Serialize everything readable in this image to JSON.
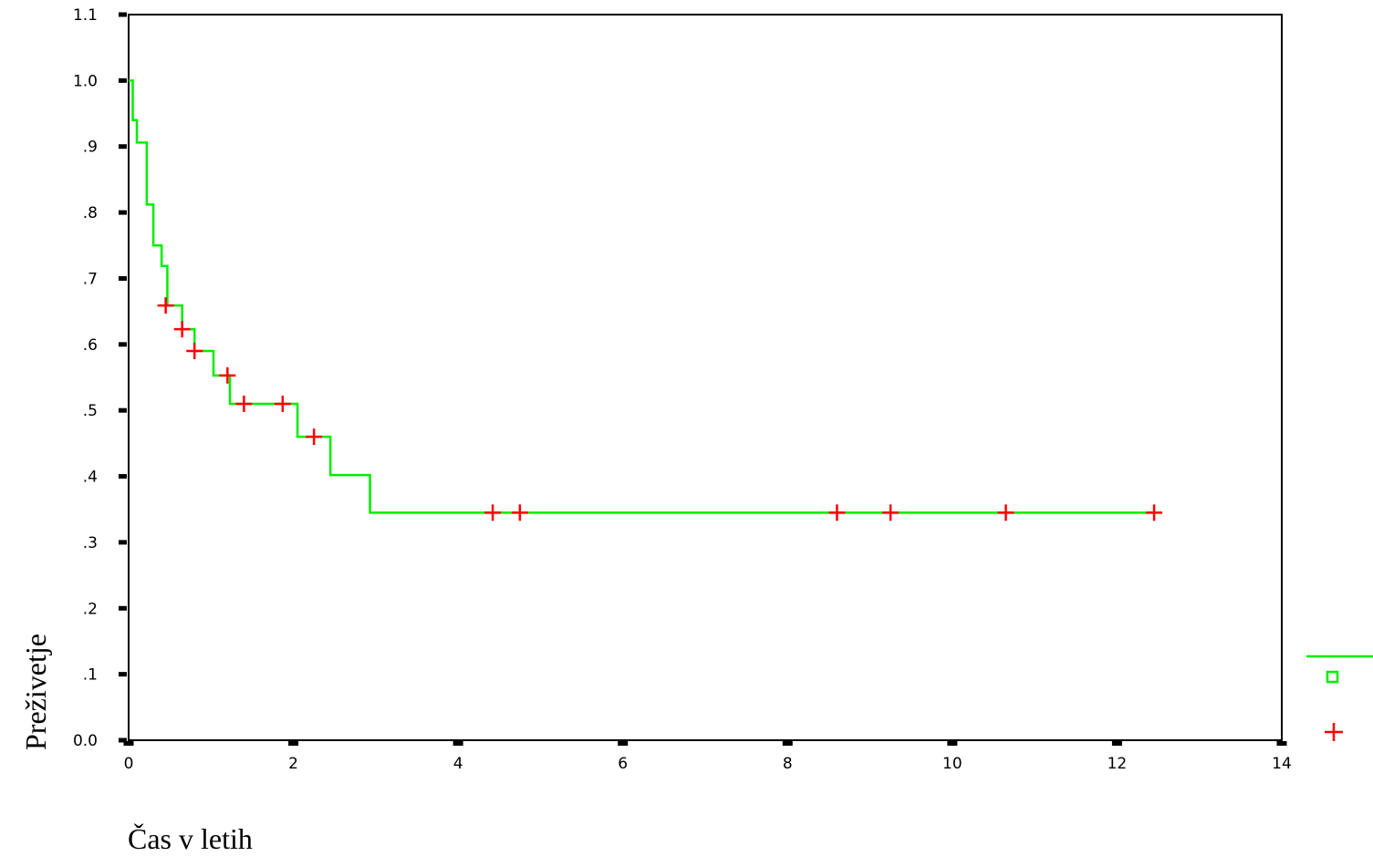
{
  "chart_data": {
    "type": "line",
    "subtype": "kaplan-meier step survival curve",
    "xlabel": "Čas v letih",
    "ylabel": "Preživetje",
    "xlim": [
      0,
      14
    ],
    "ylim": [
      0.0,
      1.1
    ],
    "x_ticks": [
      "0",
      "2",
      "4",
      "6",
      "8",
      "10",
      "12",
      "14"
    ],
    "y_ticks": [
      "0.0",
      ".1",
      ".2",
      ".3",
      ".4",
      ".5",
      ".6",
      ".7",
      ".8",
      ".9",
      "1.0",
      "1.1"
    ],
    "grid": false,
    "legend_position": "bottom-right",
    "colors": {
      "survival_line": "#00ee00",
      "censored_marker": "#ff0000"
    },
    "series": [
      {
        "type": "step",
        "color": "#00ee00",
        "points": [
          {
            "x": 0.0,
            "y": 1.0
          },
          {
            "x": 0.05,
            "y": 0.94
          },
          {
            "x": 0.1,
            "y": 0.906
          },
          {
            "x": 0.22,
            "y": 0.812
          },
          {
            "x": 0.3,
            "y": 0.75
          },
          {
            "x": 0.4,
            "y": 0.719
          },
          {
            "x": 0.47,
            "y": 0.659
          },
          {
            "x": 0.65,
            "y": 0.623
          },
          {
            "x": 0.8,
            "y": 0.59
          },
          {
            "x": 1.03,
            "y": 0.553
          },
          {
            "x": 1.23,
            "y": 0.51
          },
          {
            "x": 2.05,
            "y": 0.46
          },
          {
            "x": 2.45,
            "y": 0.402
          },
          {
            "x": 2.93,
            "y": 0.345
          },
          {
            "x": 12.45,
            "y": 0.345
          }
        ]
      },
      {
        "type": "scatter",
        "marker": "plus",
        "color": "#ff0000",
        "points": [
          {
            "x": 0.45,
            "y": 0.659
          },
          {
            "x": 0.65,
            "y": 0.623
          },
          {
            "x": 0.8,
            "y": 0.59
          },
          {
            "x": 1.2,
            "y": 0.553
          },
          {
            "x": 1.4,
            "y": 0.51
          },
          {
            "x": 1.87,
            "y": 0.51
          },
          {
            "x": 2.25,
            "y": 0.46
          },
          {
            "x": 4.42,
            "y": 0.345
          },
          {
            "x": 4.75,
            "y": 0.345
          },
          {
            "x": 8.6,
            "y": 0.345
          },
          {
            "x": 9.25,
            "y": 0.345
          },
          {
            "x": 10.65,
            "y": 0.345
          },
          {
            "x": 12.45,
            "y": 0.345
          }
        ]
      }
    ],
    "legend": [
      {
        "symbol": "line",
        "color": "#00ee00"
      },
      {
        "symbol": "square",
        "color": "#00ee00"
      },
      {
        "symbol": "plus",
        "color": "#ff0000"
      }
    ]
  }
}
